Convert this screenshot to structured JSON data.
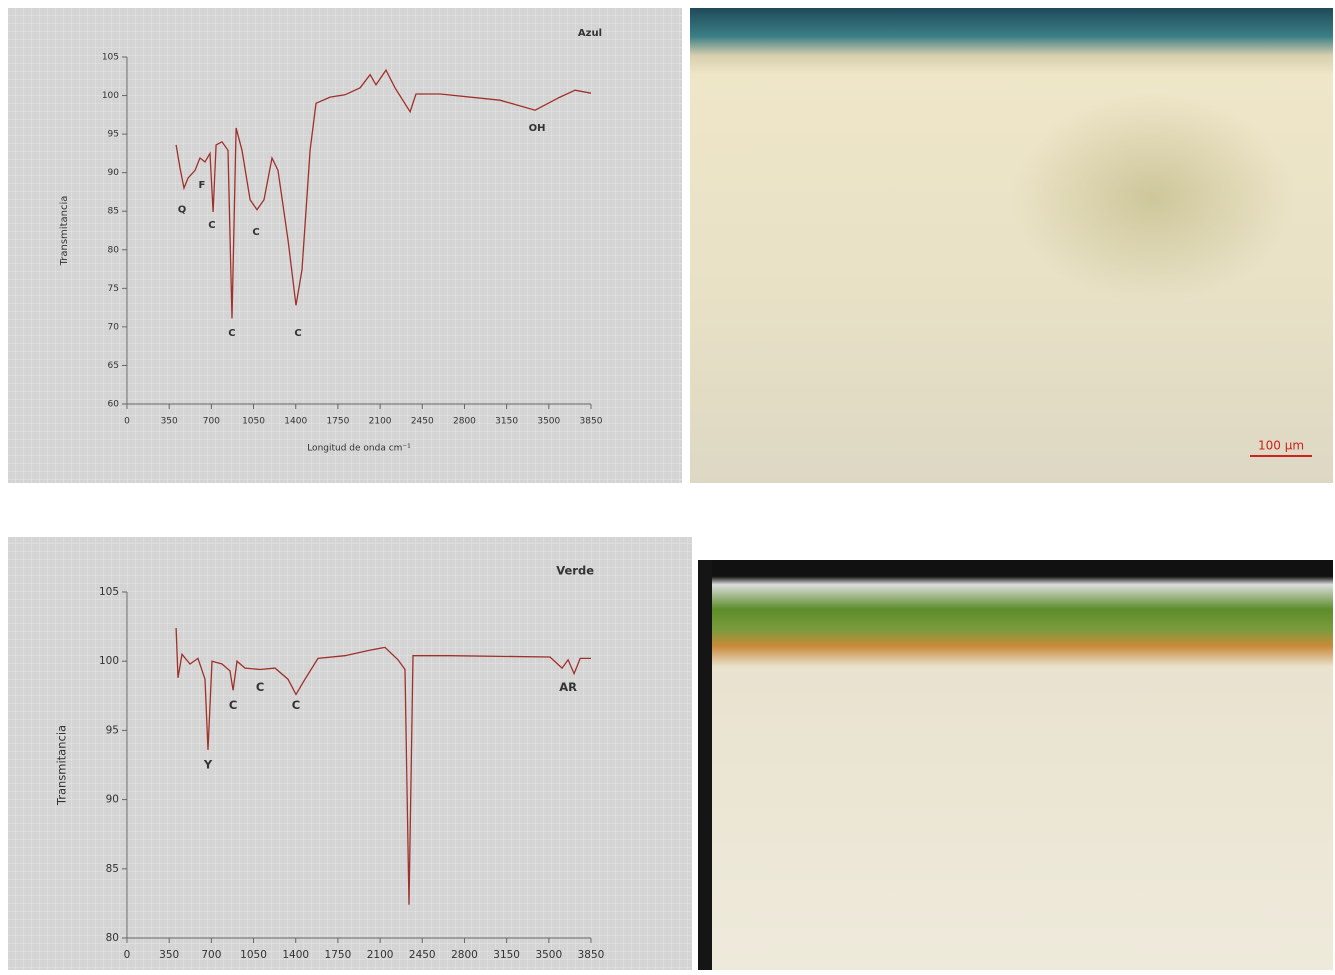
{
  "chart_data": [
    {
      "type": "line",
      "title": "Azul",
      "ylabel": "Transmitancia",
      "xlabel": "Longitud de onda cm⁻¹",
      "color": "#a0302a",
      "x": [
        407,
        440,
        473,
        506,
        564,
        606,
        647,
        689,
        714,
        739,
        788,
        838,
        871,
        905,
        954,
        1021,
        1079,
        1137,
        1203,
        1253,
        1336,
        1402,
        1452,
        1519,
        1568,
        1685,
        1809,
        1934,
        2017,
        2066,
        2149,
        2224,
        2349,
        2398,
        2598,
        3095,
        3386,
        3593,
        3718,
        3850
      ],
      "values": [
        93.6,
        90.6,
        88.0,
        89.3,
        90.3,
        91.9,
        91.4,
        92.5,
        84.9,
        93.6,
        94.0,
        92.9,
        71.1,
        95.8,
        92.9,
        86.5,
        85.2,
        86.5,
        91.9,
        90.3,
        81.3,
        72.8,
        77.4,
        92.9,
        99.0,
        99.8,
        100.1,
        101.0,
        102.7,
        101.4,
        103.3,
        101.0,
        97.9,
        100.2,
        100.2,
        99.4,
        98.1,
        99.8,
        100.7,
        100.3
      ],
      "xlim": [
        0,
        3850
      ],
      "xticks": [
        0,
        350,
        700,
        1050,
        1400,
        1750,
        2100,
        2450,
        2800,
        3150,
        3500,
        3850
      ],
      "ylim": [
        60,
        105
      ],
      "yticks": [
        60,
        65,
        70,
        75,
        80,
        85,
        90,
        95,
        100,
        105
      ],
      "annotations": [
        {
          "text": "Q",
          "x": 456,
          "y": 85.2
        },
        {
          "text": "F",
          "x": 622,
          "y": 88.4
        },
        {
          "text": "C",
          "x": 705,
          "y": 83.2
        },
        {
          "text": "C",
          "x": 871,
          "y": 69.2
        },
        {
          "text": "C",
          "x": 1071,
          "y": 82.3
        },
        {
          "text": "C",
          "x": 1419,
          "y": 69.2
        },
        {
          "text": "OH",
          "x": 3402,
          "y": 95.8
        }
      ]
    },
    {
      "type": "line",
      "title": "Verde",
      "ylabel": "Transmitancia",
      "color": "#a0302a",
      "x": [
        407,
        423,
        456,
        523,
        589,
        647,
        672,
        705,
        788,
        855,
        880,
        913,
        979,
        1104,
        1228,
        1336,
        1402,
        1477,
        1585,
        1809,
        2017,
        2141,
        2249,
        2307,
        2340,
        2373,
        2681,
        3510,
        3610,
        3660,
        3710,
        3760,
        3850
      ],
      "values": [
        102.4,
        98.8,
        100.5,
        99.8,
        100.2,
        98.7,
        93.6,
        100.0,
        99.8,
        99.3,
        97.9,
        100.0,
        99.5,
        99.4,
        99.5,
        98.7,
        97.6,
        98.7,
        100.2,
        100.4,
        100.8,
        101.0,
        100.1,
        99.4,
        82.4,
        100.4,
        100.4,
        100.3,
        99.5,
        100.1,
        99.1,
        100.2,
        100.2
      ],
      "xlim": [
        0,
        3850
      ],
      "xticks": [
        0,
        350,
        700,
        1050,
        1400,
        1750,
        2100,
        2450,
        2800,
        3150,
        3500,
        3850
      ],
      "ylim": [
        80,
        105
      ],
      "yticks": [
        80,
        85,
        90,
        95,
        100,
        105
      ],
      "annotations": [
        {
          "text": "Y",
          "x": 672,
          "y": 92.5
        },
        {
          "text": "C",
          "x": 880,
          "y": 96.8
        },
        {
          "text": "C",
          "x": 1104,
          "y": 98.1
        },
        {
          "text": "C",
          "x": 1402,
          "y": 96.8
        },
        {
          "text": "AR",
          "x": 3660,
          "y": 98.1
        }
      ]
    }
  ],
  "scale_bar": "100 µm"
}
